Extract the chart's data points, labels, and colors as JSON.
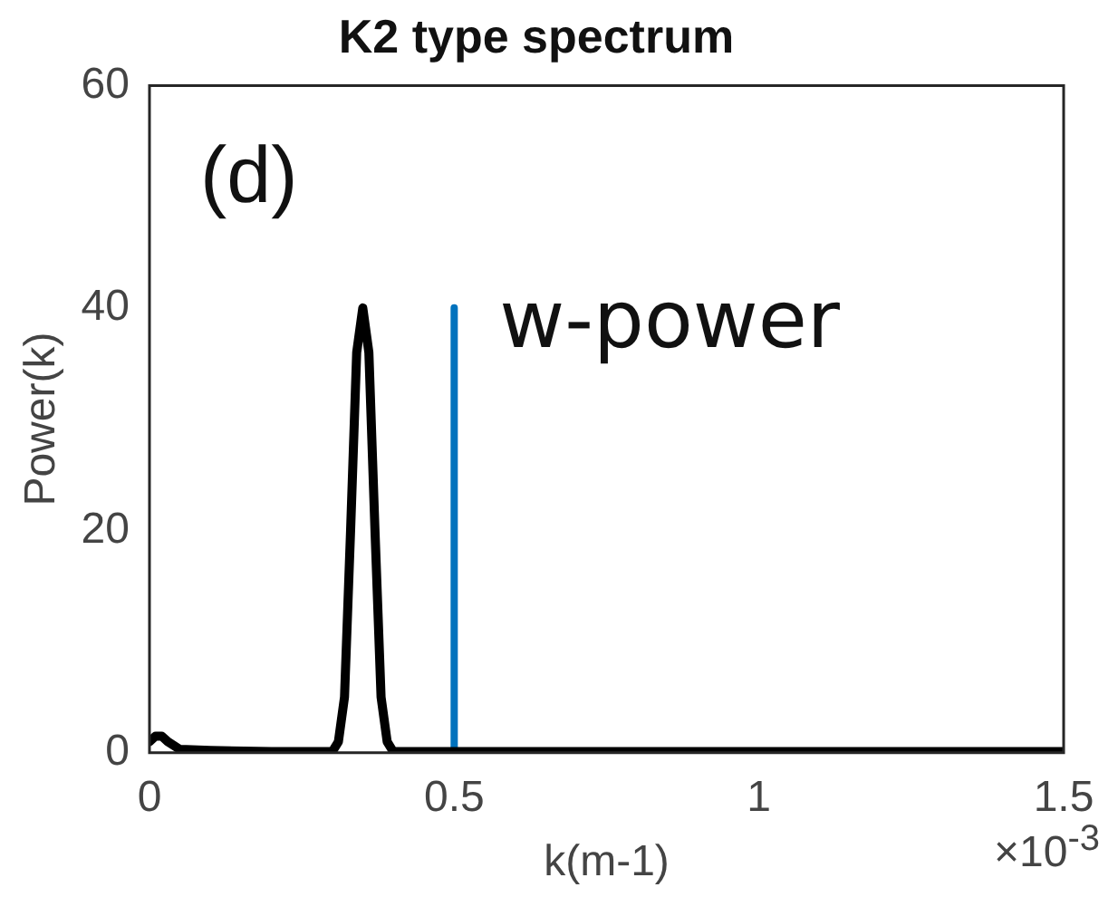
{
  "chart_data": {
    "type": "line",
    "title": "K2 type spectrum",
    "xlabel": "k(m-1)",
    "ylabel": "Power(k)",
    "xlim": [
      0,
      1.5
    ],
    "xticks": [
      0,
      0.5,
      1,
      1.5
    ],
    "ylim": [
      0,
      60
    ],
    "yticks": [
      0,
      20,
      40,
      60
    ],
    "grid": false,
    "legend": false,
    "marker": "none",
    "annotations": [
      "(d)",
      "×10$^{-3}$"
    ],
    "series": [
      {
        "color": "#000000",
        "x": [
          0,
          0.01,
          0.02,
          0.03,
          0.05,
          0.1,
          0.2,
          0.3,
          0.31,
          0.32,
          0.33,
          0.34,
          0.35,
          0.36,
          0.37,
          0.38,
          0.39,
          0.4,
          0.5,
          1,
          1.5
        ],
        "values": [
          1,
          1.5,
          1.5,
          1,
          0.3,
          0.2,
          0.1,
          0.1,
          1,
          5,
          20,
          36,
          40,
          36,
          20,
          5,
          1,
          0.1,
          0.1,
          0.1,
          0.1
        ]
      },
      {
        "name": "w-power",
        "color": "#0072bd",
        "x": [
          0.5,
          0.5
        ],
        "values": [
          0,
          40
        ]
      }
    ]
  }
}
